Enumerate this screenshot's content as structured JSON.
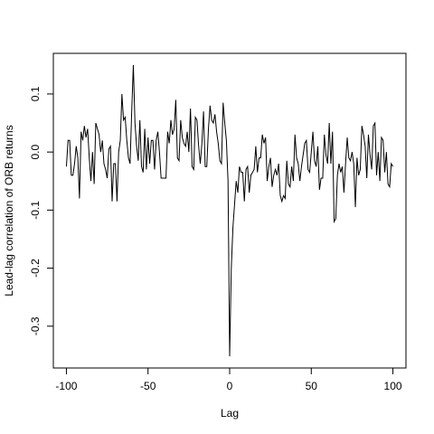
{
  "chart_data": {
    "type": "line",
    "xlabel": "Lag",
    "ylabel": "Lead-lag correlation of ORB returns",
    "x": [
      -100,
      -99,
      -98,
      -97,
      -96,
      -95,
      -94,
      -93,
      -92,
      -91,
      -90,
      -89,
      -88,
      -87,
      -86,
      -85,
      -84,
      -83,
      -82,
      -81,
      -80,
      -79,
      -78,
      -77,
      -76,
      -75,
      -74,
      -73,
      -72,
      -71,
      -70,
      -69,
      -68,
      -67,
      -66,
      -65,
      -64,
      -63,
      -62,
      -61,
      -60,
      -59,
      -58,
      -57,
      -56,
      -55,
      -54,
      -53,
      -52,
      -51,
      -50,
      -49,
      -48,
      -47,
      -46,
      -45,
      -44,
      -43,
      -42,
      -41,
      -40,
      -39,
      -38,
      -37,
      -36,
      -35,
      -34,
      -33,
      -32,
      -31,
      -30,
      -29,
      -28,
      -27,
      -26,
      -25,
      -24,
      -23,
      -22,
      -21,
      -20,
      -19,
      -18,
      -17,
      -16,
      -15,
      -14,
      -13,
      -12,
      -11,
      -10,
      -9,
      -8,
      -7,
      -6,
      -5,
      -4,
      -3,
      -2,
      -1,
      0,
      1,
      2,
      3,
      4,
      5,
      6,
      7,
      8,
      9,
      10,
      11,
      12,
      13,
      14,
      15,
      16,
      17,
      18,
      19,
      20,
      21,
      22,
      23,
      24,
      25,
      26,
      27,
      28,
      29,
      30,
      31,
      32,
      33,
      34,
      35,
      36,
      37,
      38,
      39,
      40,
      41,
      42,
      43,
      44,
      45,
      46,
      47,
      48,
      49,
      50,
      51,
      52,
      53,
      54,
      55,
      56,
      57,
      58,
      59,
      60,
      61,
      62,
      63,
      64,
      65,
      66,
      67,
      68,
      69,
      70,
      71,
      72,
      73,
      74,
      75,
      76,
      77,
      78,
      79,
      80,
      81,
      82,
      83,
      84,
      85,
      86,
      87,
      88,
      89,
      90,
      91,
      92,
      93,
      94,
      95,
      96,
      97,
      98,
      99,
      100
    ],
    "series": [
      {
        "color": "#000000",
        "values": [
          -0.025,
          0.02,
          0.02,
          -0.04,
          -0.04,
          -0.02,
          0.01,
          -0.01,
          -0.08,
          0.035,
          0.02,
          0.045,
          0.025,
          0.04,
          -0.01,
          -0.05,
          0.0,
          -0.055,
          0.05,
          0.04,
          0.03,
          0.0,
          0.02,
          -0.02,
          -0.03,
          -0.045,
          0.005,
          0.01,
          -0.085,
          -0.02,
          -0.02,
          -0.085,
          0.0,
          0.02,
          0.1,
          0.055,
          0.06,
          0.02,
          -0.01,
          -0.02,
          0.07,
          0.15,
          0.05,
          0.01,
          -0.015,
          0.055,
          -0.025,
          -0.035,
          0.04,
          -0.03,
          0.025,
          -0.02,
          0.02,
          0.02,
          -0.03,
          0.02,
          0.035,
          0.0,
          -0.045,
          -0.045,
          -0.045,
          -0.045,
          0.035,
          0.015,
          0.055,
          0.03,
          0.04,
          0.09,
          -0.01,
          -0.015,
          0.055,
          0.025,
          0.015,
          0.01,
          0.035,
          0.0,
          0.075,
          -0.025,
          -0.03,
          0.06,
          0.055,
          0.01,
          -0.02,
          0.015,
          0.07,
          -0.025,
          -0.025,
          0.04,
          0.08,
          0.055,
          0.05,
          0.065,
          0.035,
          0.015,
          -0.015,
          -0.02,
          0.085,
          0.05,
          0.02,
          -0.05,
          -0.352,
          -0.2,
          -0.13,
          -0.09,
          -0.05,
          -0.07,
          -0.025,
          -0.035,
          -0.035,
          -0.085,
          -0.03,
          -0.025,
          -0.07,
          -0.04,
          -0.035,
          -0.03,
          0.01,
          -0.035,
          -0.01,
          -0.01,
          0.03,
          0.015,
          0.025,
          -0.05,
          -0.025,
          -0.01,
          -0.06,
          -0.04,
          -0.03,
          -0.04,
          -0.02,
          -0.075,
          -0.085,
          -0.075,
          -0.08,
          -0.015,
          -0.055,
          -0.06,
          -0.025,
          -0.05,
          0.03,
          -0.01,
          -0.02,
          -0.05,
          -0.025,
          -0.005,
          0.015,
          0.02,
          -0.03,
          -0.035,
          0.0,
          0.035,
          -0.015,
          -0.025,
          0.01,
          -0.065,
          -0.045,
          -0.045,
          0.03,
          -0.005,
          -0.02,
          0.05,
          -0.02,
          0.035,
          -0.12,
          -0.115,
          -0.04,
          -0.02,
          -0.035,
          -0.025,
          -0.07,
          -0.02,
          0.025,
          -0.01,
          -0.015,
          0.0,
          -0.02,
          -0.095,
          -0.01,
          -0.04,
          -0.03,
          0.045,
          0.03,
          0.01,
          -0.045,
          0.03,
          -0.005,
          -0.03,
          0.045,
          0.05,
          -0.04,
          0.0,
          -0.05,
          0.025,
          0.02,
          -0.035,
          0.0,
          -0.055,
          -0.06,
          -0.02,
          -0.025
        ]
      }
    ],
    "xlim": [
      -108,
      108
    ],
    "xticks": [
      -100,
      -50,
      0,
      50,
      100
    ],
    "ylim": [
      -0.372,
      0.17
    ],
    "yticks": [
      -0.3,
      -0.2,
      -0.1,
      {
        "value": 0,
        "label": "0.0"
      },
      0.1
    ],
    "grid": false
  }
}
